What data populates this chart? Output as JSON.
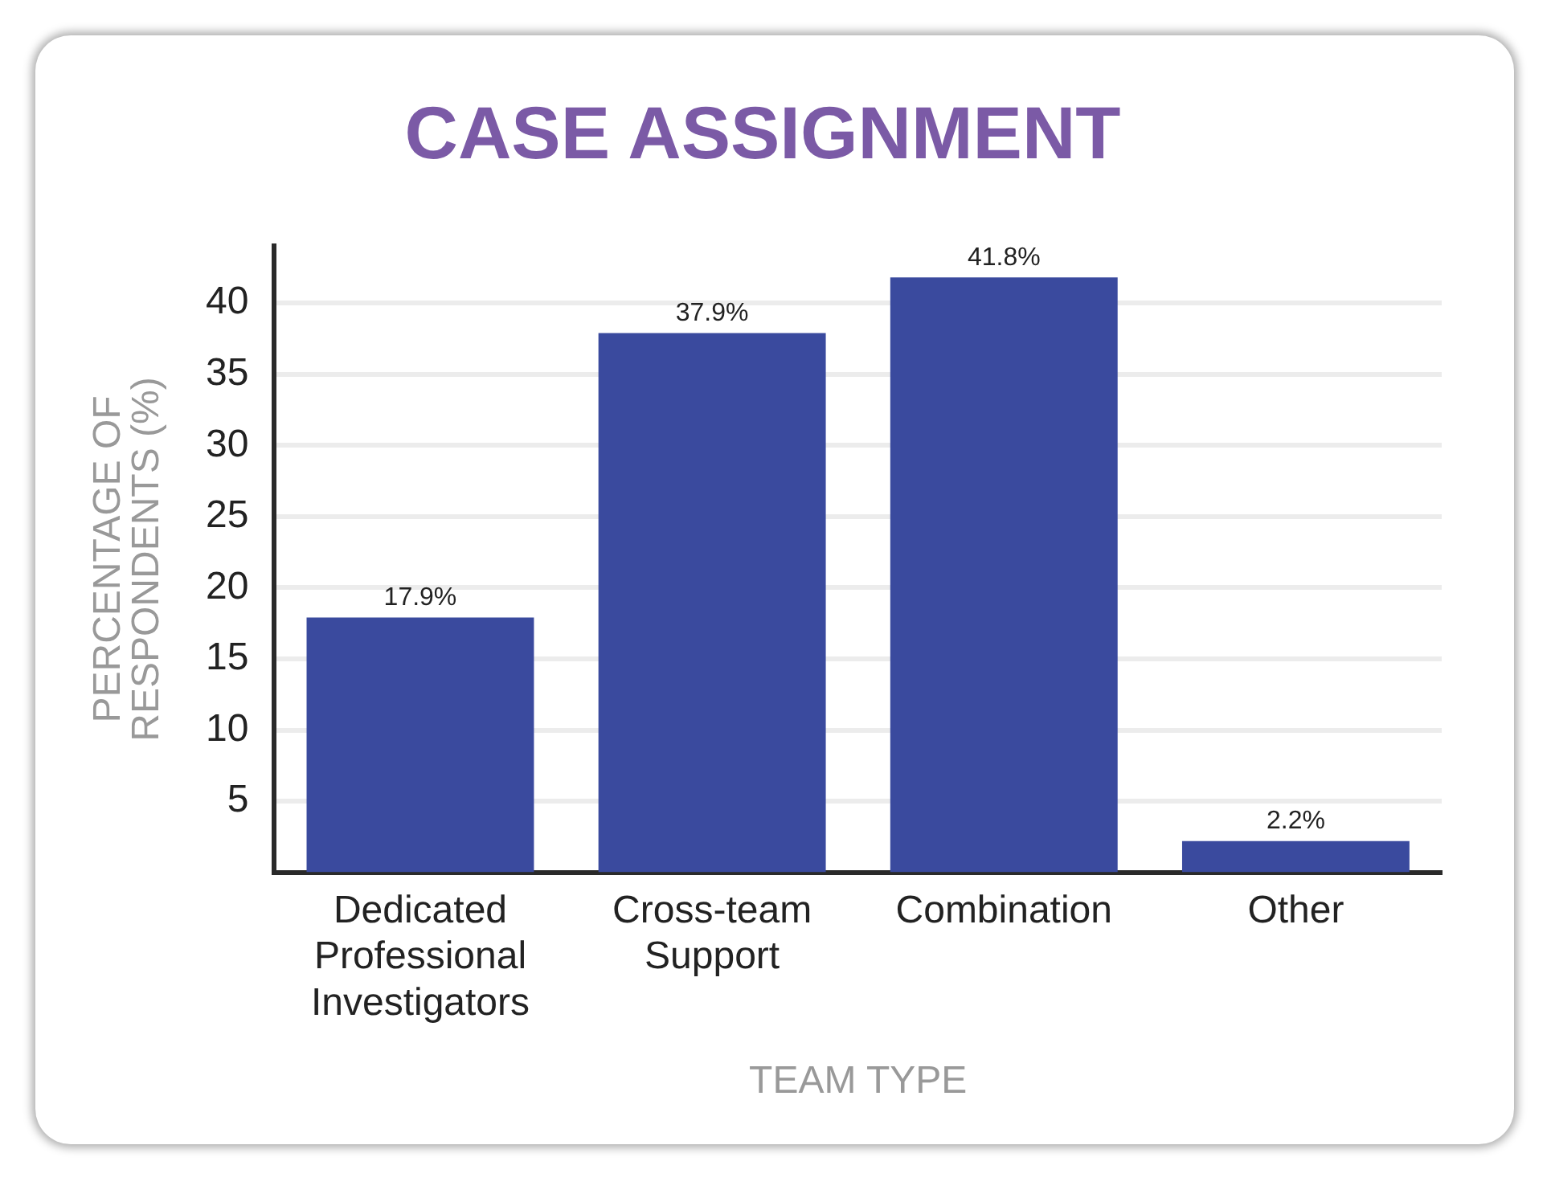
{
  "chart_data": {
    "type": "bar",
    "title": "CASE ASSIGNMENT",
    "xlabel": "TEAM TYPE",
    "ylabel": "PERCENTAGE OF RESPONDENTS (%)",
    "categories": [
      "Dedicated Professional Investigators",
      "Cross-team Support",
      "Combination",
      "Other"
    ],
    "values": [
      17.9,
      37.9,
      41.8,
      2.2
    ],
    "color": "#3a4a9e",
    "value_labels": [
      "17.9%",
      "37.9%",
      "41.8%",
      "2.2%"
    ],
    "ylim": [
      0,
      44
    ],
    "yticks": [
      5,
      10,
      15,
      20,
      25,
      30,
      35,
      40
    ],
    "grid": "y",
    "legend": false
  }
}
